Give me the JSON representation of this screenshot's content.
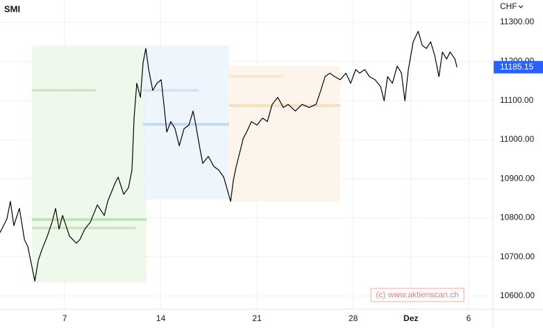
{
  "chart_data": {
    "type": "line",
    "title": "SMI",
    "currency": "CHF",
    "watermark": "(c) www.aktienscan.ch",
    "x": [
      -3.36,
      -3.0,
      -2.82,
      -2.64,
      -2.35,
      -2.09,
      -1.91,
      -1.73,
      -1.55,
      -1.37,
      -1.19,
      -0.9,
      -0.65,
      -0.47,
      -0.29,
      -0.11,
      0.07,
      0.25,
      0.61,
      0.79,
      1.05,
      1.34,
      1.7,
      2.06,
      2.24,
      2.6,
      2.78,
      3.07,
      3.32,
      3.5,
      3.61,
      3.75,
      3.94,
      4.08,
      4.22,
      4.37,
      4.58,
      4.8,
      5.02,
      5.16,
      5.31,
      5.52,
      5.74,
      5.96,
      6.21,
      6.46,
      6.68,
      6.82,
      7.04,
      7.18,
      7.47,
      7.76,
      8.01,
      8.27,
      8.48,
      8.63,
      8.77,
      8.92,
      9.1,
      9.28,
      9.46,
      9.71,
      10.0,
      10.29,
      10.54,
      10.79,
      11.08,
      11.37,
      11.62,
      11.99,
      12.35,
      12.71,
      13.07,
      13.32,
      13.54,
      13.79,
      14.04,
      14.33,
      14.62,
      14.87,
      15.13,
      15.34,
      15.6,
      15.85,
      16.14,
      16.43,
      16.61,
      16.79,
      17.04,
      17.29,
      17.51,
      17.69,
      17.87,
      18.12,
      18.38,
      18.59,
      18.81,
      19.03,
      19.24,
      19.46,
      19.64,
      19.86,
      20.04,
      20.29,
      20.4
    ],
    "series": [
      {
        "name": "SMI",
        "color": "#000000",
        "values": [
          10762,
          10797,
          10842,
          10780,
          10824,
          10744,
          10726,
          10682,
          10638,
          10691,
          10717,
          10753,
          10789,
          10824,
          10771,
          10806,
          10780,
          10753,
          10735,
          10744,
          10771,
          10789,
          10833,
          10806,
          10842,
          10886,
          10904,
          10860,
          10877,
          10922,
          11055,
          11144,
          11108,
          11197,
          11233,
          11179,
          11126,
          11144,
          11153,
          11090,
          11019,
          11046,
          11028,
          10984,
          11028,
          11037,
          11073,
          11037,
          10975,
          10939,
          10957,
          10931,
          10922,
          10904,
          10868,
          10842,
          10895,
          10931,
          10966,
          11002,
          11019,
          11046,
          11037,
          11055,
          11046,
          11090,
          11108,
          11082,
          11090,
          11073,
          11090,
          11082,
          11090,
          11126,
          11161,
          11170,
          11161,
          11153,
          11170,
          11144,
          11179,
          11170,
          11179,
          11161,
          11153,
          11135,
          11099,
          11161,
          11144,
          11188,
          11170,
          11099,
          11179,
          11250,
          11277,
          11241,
          11233,
          11250,
          11215,
          11161,
          11224,
          11206,
          11224,
          11206,
          11185.15
        ]
      }
    ],
    "xlim": [
      -3.36,
      22.27
    ],
    "xticks": [
      {
        "value": 0,
        "label": "7"
      },
      {
        "value": 5,
        "label": "14"
      },
      {
        "value": 10,
        "label": "21"
      },
      {
        "value": 15,
        "label": "28"
      },
      {
        "value": 18,
        "label": "Dez"
      },
      {
        "value": 21,
        "label": "6"
      }
    ],
    "ylim": [
      10566,
      11357
    ],
    "yticks": [
      {
        "value": 10600,
        "label": "10600.00"
      },
      {
        "value": 10700,
        "label": "10700.00"
      },
      {
        "value": 10800,
        "label": "10800.00"
      },
      {
        "value": 10900,
        "label": "10900.00"
      },
      {
        "value": 11000,
        "label": "11000.00"
      },
      {
        "value": 11100,
        "label": "11100.00"
      },
      {
        "value": 11200,
        "label": "11200.00"
      },
      {
        "value": 11300,
        "label": "11300.00"
      }
    ],
    "grid": true,
    "price_tag_color": "#2962ff"
  }
}
